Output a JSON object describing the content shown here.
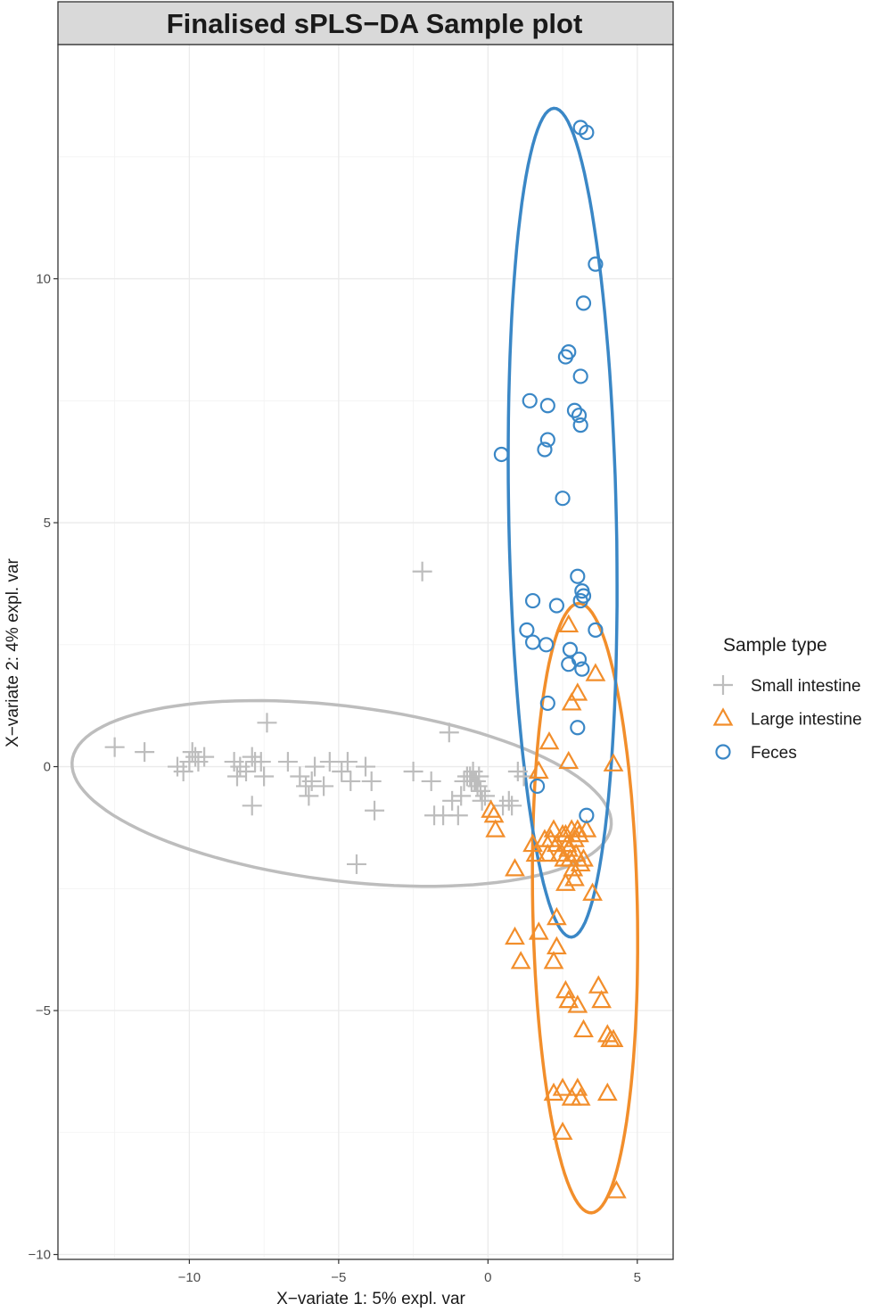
{
  "chart_data": {
    "type": "scatter",
    "title": "Finalised sPLS−DA Sample plot",
    "xlabel": "X−variate 1: 5% expl. var",
    "ylabel": "X−variate 2: 4% expl. var",
    "xlim": [
      -14.4,
      6.2
    ],
    "ylim": [
      -10.1,
      14.8
    ],
    "xticks": [
      -10,
      -5,
      0,
      5
    ],
    "xtick_labels": [
      "−10",
      "−5",
      "0",
      "5"
    ],
    "yticks": [
      -10,
      -5,
      0,
      5,
      10
    ],
    "ytick_labels": [
      "−10",
      "−5",
      "0",
      "5",
      "10"
    ],
    "grid": true,
    "legend": {
      "title": "Sample type",
      "placement": "right"
    },
    "series": [
      {
        "name": "Small intestine",
        "marker": "plus",
        "color": "#bdbdbd",
        "points": [
          [
            -12.5,
            0.4
          ],
          [
            -11.5,
            0.3
          ],
          [
            -10.4,
            0.0
          ],
          [
            -10.2,
            -0.1
          ],
          [
            -9.9,
            0.3
          ],
          [
            -10.0,
            0.1
          ],
          [
            -9.7,
            0.1
          ],
          [
            -9.8,
            0.2
          ],
          [
            -9.5,
            0.2
          ],
          [
            -8.5,
            0.1
          ],
          [
            -8.3,
            0.0
          ],
          [
            -8.1,
            -0.1
          ],
          [
            -8.4,
            -0.2
          ],
          [
            -7.9,
            0.2
          ],
          [
            -7.8,
            0.1
          ],
          [
            -7.6,
            0.1
          ],
          [
            -7.5,
            -0.2
          ],
          [
            -7.9,
            -0.8
          ],
          [
            -7.4,
            0.9
          ],
          [
            -6.7,
            0.1
          ],
          [
            -6.3,
            -0.2
          ],
          [
            -6.1,
            -0.4
          ],
          [
            -5.9,
            -0.3
          ],
          [
            -6.0,
            -0.6
          ],
          [
            -5.8,
            0.0
          ],
          [
            -5.5,
            -0.4
          ],
          [
            -5.3,
            0.1
          ],
          [
            -4.9,
            -0.1
          ],
          [
            -4.7,
            0.1
          ],
          [
            -4.6,
            -0.3
          ],
          [
            -4.1,
            0.0
          ],
          [
            -3.9,
            -0.3
          ],
          [
            -3.8,
            -0.9
          ],
          [
            -4.4,
            -2.0
          ],
          [
            -2.5,
            -0.1
          ],
          [
            -2.2,
            4.0
          ],
          [
            -1.9,
            -0.3
          ],
          [
            -1.8,
            -1.0
          ],
          [
            -1.5,
            -1.0
          ],
          [
            -1.3,
            0.7
          ],
          [
            -1.2,
            -0.7
          ],
          [
            -1.0,
            -1.0
          ],
          [
            -0.9,
            -0.6
          ],
          [
            -0.8,
            -0.3
          ],
          [
            -0.7,
            -0.2
          ],
          [
            -0.6,
            -0.2
          ],
          [
            -0.55,
            -0.3
          ],
          [
            -0.5,
            -0.1
          ],
          [
            -0.45,
            -0.3
          ],
          [
            -0.4,
            -0.3
          ],
          [
            -0.35,
            -0.4
          ],
          [
            -0.3,
            -0.2
          ],
          [
            -0.25,
            -0.5
          ],
          [
            -0.2,
            -0.7
          ],
          [
            -0.1,
            -0.6
          ],
          [
            0.5,
            -0.8
          ],
          [
            0.7,
            -0.7
          ],
          [
            0.8,
            -0.8
          ],
          [
            1.0,
            -0.1
          ],
          [
            1.2,
            -0.2
          ]
        ],
        "ellipse": {
          "cx": -4.9,
          "cy": -0.55,
          "rx": 9.05,
          "ry": 1.8,
          "angle_deg": -4.0
        }
      },
      {
        "name": "Large intestine",
        "marker": "triangle",
        "color": "#f28e2b",
        "points": [
          [
            0.1,
            -0.9
          ],
          [
            0.2,
            -1.0
          ],
          [
            0.25,
            -1.3
          ],
          [
            0.9,
            -2.1
          ],
          [
            1.5,
            -1.6
          ],
          [
            1.6,
            -1.8
          ],
          [
            1.7,
            -0.1
          ],
          [
            1.9,
            -1.5
          ],
          [
            2.0,
            -1.8
          ],
          [
            2.05,
            0.5
          ],
          [
            2.1,
            -1.5
          ],
          [
            2.2,
            -1.3
          ],
          [
            2.3,
            -1.6
          ],
          [
            2.3,
            -3.1
          ],
          [
            2.4,
            -1.8
          ],
          [
            2.5,
            -1.4
          ],
          [
            2.55,
            -1.9
          ],
          [
            2.6,
            -1.4
          ],
          [
            2.65,
            -1.6
          ],
          [
            2.7,
            -1.7
          ],
          [
            2.75,
            -1.9
          ],
          [
            2.8,
            -1.3
          ],
          [
            2.85,
            -2.1
          ],
          [
            2.9,
            -1.5
          ],
          [
            2.95,
            -1.8
          ],
          [
            3.0,
            -1.3
          ],
          [
            3.05,
            -1.4
          ],
          [
            3.1,
            -2.0
          ],
          [
            3.2,
            -1.9
          ],
          [
            3.3,
            -1.3
          ],
          [
            2.6,
            -2.4
          ],
          [
            2.9,
            -2.3
          ],
          [
            3.5,
            -2.6
          ],
          [
            2.3,
            -3.7
          ],
          [
            2.2,
            -4.0
          ],
          [
            0.9,
            -3.5
          ],
          [
            1.1,
            -4.0
          ],
          [
            1.7,
            -3.4
          ],
          [
            2.6,
            -4.6
          ],
          [
            2.7,
            -4.8
          ],
          [
            3.0,
            -4.9
          ],
          [
            3.2,
            -5.4
          ],
          [
            3.7,
            -4.5
          ],
          [
            3.8,
            -4.8
          ],
          [
            4.0,
            -5.5
          ],
          [
            4.1,
            -5.6
          ],
          [
            4.2,
            -5.6
          ],
          [
            2.2,
            -6.7
          ],
          [
            2.5,
            -6.6
          ],
          [
            2.8,
            -6.8
          ],
          [
            3.0,
            -6.6
          ],
          [
            3.1,
            -6.8
          ],
          [
            4.0,
            -6.7
          ],
          [
            2.5,
            -7.5
          ],
          [
            4.3,
            -8.7
          ],
          [
            2.7,
            2.9
          ],
          [
            3.0,
            1.5
          ],
          [
            2.8,
            1.3
          ],
          [
            3.6,
            1.9
          ],
          [
            2.7,
            0.1
          ],
          [
            4.2,
            0.05
          ]
        ],
        "ellipse": {
          "cx": 3.25,
          "cy": -2.9,
          "rx": 1.75,
          "ry": 6.25,
          "angle_deg": 2.0
        }
      },
      {
        "name": "Feces",
        "marker": "circle",
        "color": "#3a87c6",
        "points": [
          [
            3.1,
            13.1
          ],
          [
            3.3,
            13.0
          ],
          [
            3.6,
            10.3
          ],
          [
            3.2,
            9.5
          ],
          [
            2.7,
            8.5
          ],
          [
            2.6,
            8.4
          ],
          [
            3.1,
            8.0
          ],
          [
            1.4,
            7.5
          ],
          [
            2.0,
            7.4
          ],
          [
            2.9,
            7.3
          ],
          [
            3.05,
            7.2
          ],
          [
            3.1,
            7.0
          ],
          [
            2.0,
            6.7
          ],
          [
            1.9,
            6.5
          ],
          [
            0.45,
            6.4
          ],
          [
            2.5,
            5.5
          ],
          [
            3.0,
            3.9
          ],
          [
            3.15,
            3.6
          ],
          [
            3.2,
            3.5
          ],
          [
            3.1,
            3.4
          ],
          [
            1.5,
            3.4
          ],
          [
            2.3,
            3.3
          ],
          [
            3.6,
            2.8
          ],
          [
            1.3,
            2.8
          ],
          [
            1.5,
            2.55
          ],
          [
            1.95,
            2.5
          ],
          [
            2.75,
            2.4
          ],
          [
            3.05,
            2.2
          ],
          [
            3.15,
            2.0
          ],
          [
            2.7,
            2.1
          ],
          [
            2.0,
            1.3
          ],
          [
            3.0,
            0.8
          ],
          [
            1.65,
            -0.4
          ],
          [
            3.3,
            -1.0
          ]
        ],
        "ellipse": {
          "cx": 2.5,
          "cy": 5.0,
          "rx": 1.8,
          "ry": 8.5,
          "angle_deg": 2.0
        }
      }
    ]
  }
}
